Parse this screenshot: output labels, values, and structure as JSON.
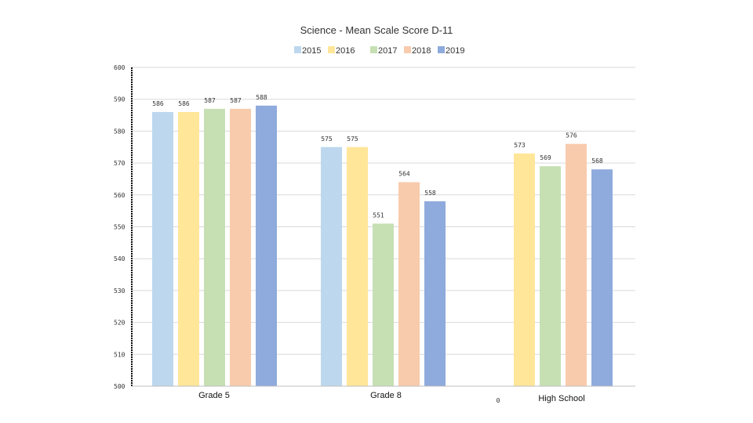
{
  "chart_data": {
    "type": "bar",
    "title": "Science - Mean Scale Score D-11",
    "xlabel": "",
    "ylabel": "",
    "ylim": [
      500,
      600
    ],
    "yticks": [
      500,
      510,
      520,
      530,
      540,
      550,
      560,
      570,
      580,
      590,
      600
    ],
    "grid": true,
    "legend_position": "top-center",
    "categories": [
      "Grade 5",
      "Grade 8",
      "High School"
    ],
    "series": [
      {
        "name": "2015",
        "color": "#bdd7ee",
        "values": [
          586,
          575,
          null
        ]
      },
      {
        "name": "2016",
        "color": "#ffe699",
        "values": [
          586,
          575,
          573
        ]
      },
      {
        "name": "2017",
        "color": "#c6e0b4",
        "values": [
          587,
          551,
          569
        ]
      },
      {
        "name": "2018",
        "color": "#f8cbad",
        "values": [
          587,
          564,
          576
        ]
      },
      {
        "name": "2019",
        "color": "#8faadc",
        "values": [
          588,
          558,
          568
        ]
      }
    ],
    "data_labels": [
      [
        "586",
        "575",
        null
      ],
      [
        "586",
        "575",
        "573"
      ],
      [
        "587",
        "551",
        "569"
      ],
      [
        "587",
        "564",
        "576"
      ],
      [
        "588",
        "558",
        "568"
      ]
    ],
    "annotations": [
      {
        "text": "0"
      }
    ]
  }
}
